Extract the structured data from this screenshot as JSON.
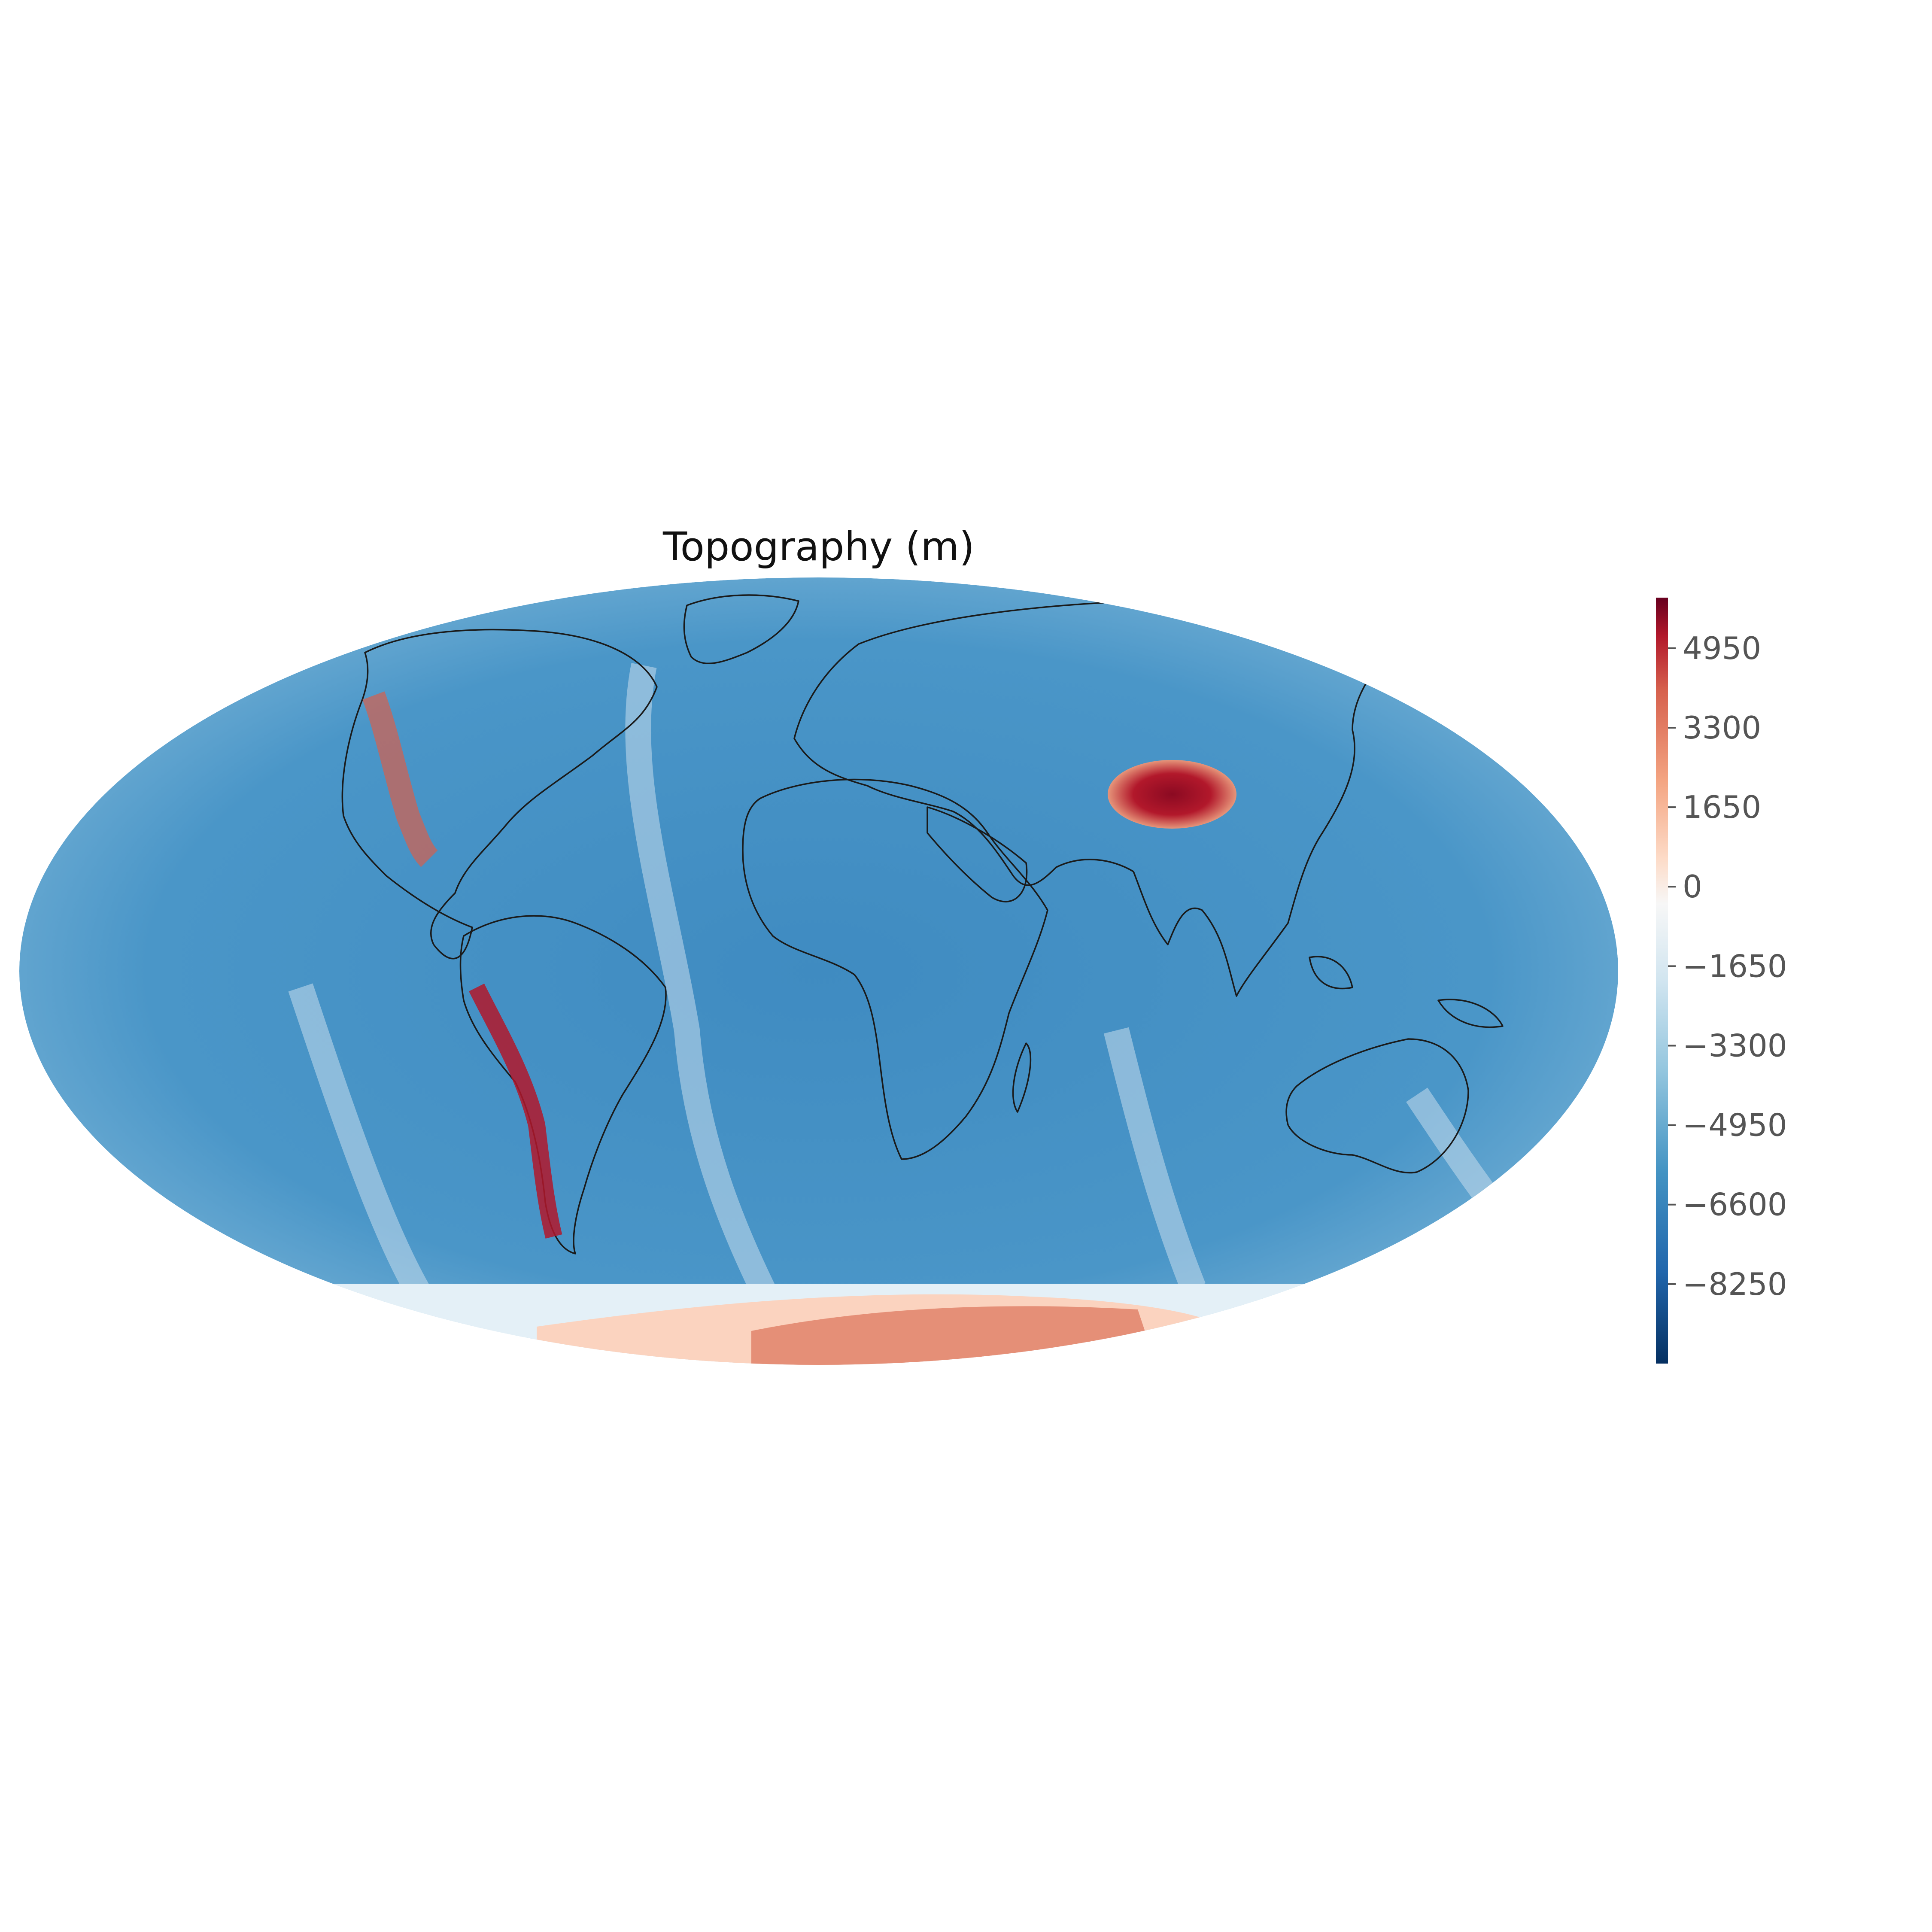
{
  "map": {
    "title": "Topography (m)",
    "projection": "mollweide",
    "colormap": "RdBu_r",
    "coastlines": true,
    "colors": {
      "deep_ocean": "#2166ac",
      "ocean": "#4393c3",
      "shallow_ocean": "#92c5de",
      "sea_level": "#f7f7f7",
      "lowland": "#fddbc7",
      "upland": "#f4a582",
      "highland": "#d6604d",
      "peak": "#67001f"
    }
  },
  "colorbar": {
    "vmin": -9900,
    "vmax": 6000,
    "ticks": [
      {
        "value": 4950,
        "label": "4950"
      },
      {
        "value": 3300,
        "label": "3300"
      },
      {
        "value": 1650,
        "label": "1650"
      },
      {
        "value": 0,
        "label": "0"
      },
      {
        "value": -1650,
        "label": "−1650"
      },
      {
        "value": -3300,
        "label": "−3300"
      },
      {
        "value": -4950,
        "label": "−4950"
      },
      {
        "value": -6600,
        "label": "−6600"
      },
      {
        "value": -8250,
        "label": "−8250"
      }
    ]
  }
}
